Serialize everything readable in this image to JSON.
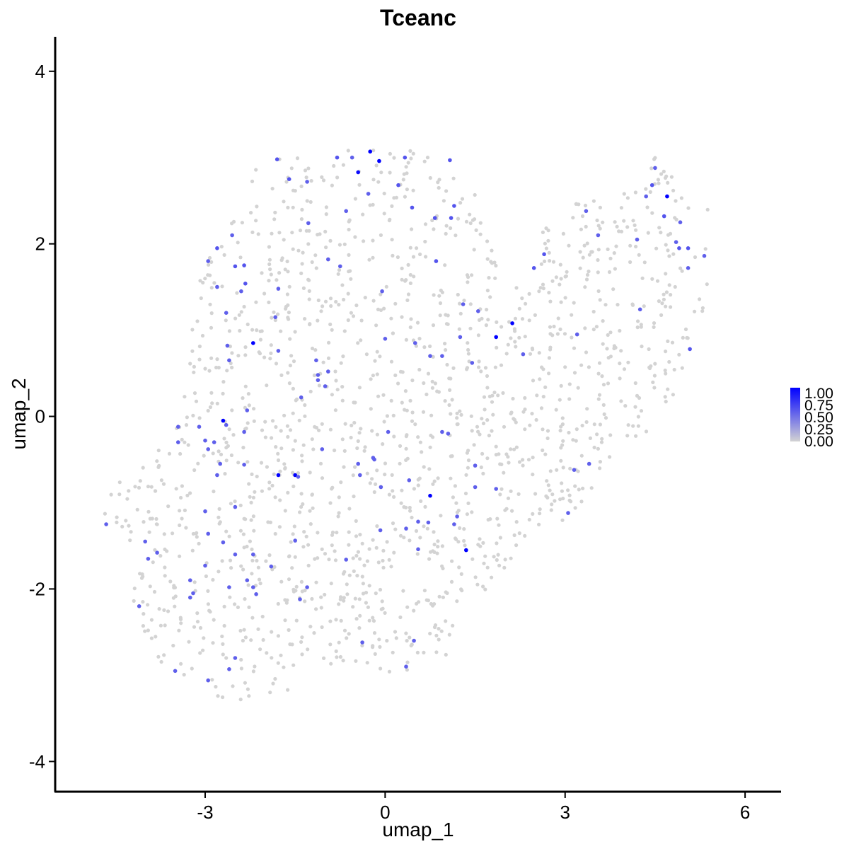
{
  "chart_data": {
    "type": "scatter",
    "title": "Tceanc",
    "xlabel": "umap_1",
    "ylabel": "umap_2",
    "xlim": [
      -5.5,
      6.6
    ],
    "ylim": [
      -4.35,
      4.4
    ],
    "x_ticks": [
      -3,
      0,
      3,
      6
    ],
    "y_ticks": [
      -4,
      -2,
      0,
      2,
      4
    ],
    "x_tick_labels": [
      "-3",
      "0",
      "3",
      "6"
    ],
    "y_tick_labels": [
      "-4",
      "-2",
      "0",
      "2",
      "4"
    ],
    "grid": false,
    "legend": {
      "placement": "right",
      "type": "colorbar",
      "breaks": [
        "1.00",
        "0.75",
        "0.50",
        "0.25",
        "0.00"
      ],
      "low_color": "#d3d3d3",
      "high_color": "#0000ff",
      "range": [
        0,
        1
      ]
    },
    "background_cells": {
      "count": 1550,
      "value": 0,
      "color": "#d3d3d3",
      "note_region": "cells spread over umap_1 -4.8..5.4, umap_2 -3.5..3.1"
    },
    "expressing_points": [
      {
        "x": -0.25,
        "y": 3.07,
        "v": 1.0
      },
      {
        "x": -0.1,
        "y": 2.96,
        "v": 1.0
      },
      {
        "x": -0.45,
        "y": 2.83,
        "v": 0.95
      },
      {
        "x": 4.7,
        "y": 2.55,
        "v": 1.0
      },
      {
        "x": 2.12,
        "y": 1.08,
        "v": 1.0
      },
      {
        "x": 1.85,
        "y": 0.92,
        "v": 1.0
      },
      {
        "x": -2.2,
        "y": 0.85,
        "v": 1.0
      },
      {
        "x": -2.7,
        "y": -0.05,
        "v": 1.0
      },
      {
        "x": -1.78,
        "y": -0.68,
        "v": 1.0
      },
      {
        "x": -1.5,
        "y": -0.68,
        "v": 1.0
      },
      {
        "x": 0.75,
        "y": -0.92,
        "v": 1.0
      },
      {
        "x": 1.35,
        "y": -1.55,
        "v": 1.0
      },
      {
        "x": -1.8,
        "y": 2.98,
        "v": 0.6
      },
      {
        "x": -1.6,
        "y": 2.75,
        "v": 0.6
      },
      {
        "x": -0.8,
        "y": 3.0,
        "v": 0.6
      },
      {
        "x": -0.55,
        "y": 3.0,
        "v": 0.55
      },
      {
        "x": 0.33,
        "y": 3.0,
        "v": 0.6
      },
      {
        "x": 1.08,
        "y": 2.97,
        "v": 0.6
      },
      {
        "x": -1.3,
        "y": 2.72,
        "v": 0.55
      },
      {
        "x": 0.22,
        "y": 2.68,
        "v": 0.6
      },
      {
        "x": -0.28,
        "y": 2.58,
        "v": 0.55
      },
      {
        "x": 0.45,
        "y": 2.42,
        "v": 0.6
      },
      {
        "x": 1.15,
        "y": 2.44,
        "v": 0.6
      },
      {
        "x": -0.65,
        "y": 2.38,
        "v": 0.55
      },
      {
        "x": 0.83,
        "y": 2.3,
        "v": 0.6
      },
      {
        "x": 1.1,
        "y": 2.3,
        "v": 0.6
      },
      {
        "x": -1.28,
        "y": 2.24,
        "v": 0.55
      },
      {
        "x": -2.55,
        "y": 2.1,
        "v": 0.55
      },
      {
        "x": -2.8,
        "y": 1.95,
        "v": 0.6
      },
      {
        "x": -2.95,
        "y": 1.8,
        "v": 0.55
      },
      {
        "x": -2.35,
        "y": 1.75,
        "v": 0.6
      },
      {
        "x": -2.5,
        "y": 1.74,
        "v": 0.6
      },
      {
        "x": -0.95,
        "y": 1.82,
        "v": 0.55
      },
      {
        "x": -0.75,
        "y": 1.74,
        "v": 0.55
      },
      {
        "x": 0.85,
        "y": 1.8,
        "v": 0.6
      },
      {
        "x": -2.8,
        "y": 1.5,
        "v": 0.55
      },
      {
        "x": -2.33,
        "y": 1.54,
        "v": 0.6
      },
      {
        "x": -2.4,
        "y": 1.45,
        "v": 0.55
      },
      {
        "x": -1.78,
        "y": 1.48,
        "v": 0.55
      },
      {
        "x": -0.05,
        "y": 1.45,
        "v": 0.55
      },
      {
        "x": 2.48,
        "y": 1.72,
        "v": 0.6
      },
      {
        "x": 2.65,
        "y": 1.88,
        "v": 0.6
      },
      {
        "x": 3.35,
        "y": 2.38,
        "v": 0.55
      },
      {
        "x": 3.55,
        "y": 2.1,
        "v": 0.55
      },
      {
        "x": 4.2,
        "y": 2.05,
        "v": 0.55
      },
      {
        "x": 4.5,
        "y": 2.88,
        "v": 0.55
      },
      {
        "x": 4.45,
        "y": 2.68,
        "v": 0.6
      },
      {
        "x": 4.65,
        "y": 2.32,
        "v": 0.6
      },
      {
        "x": 4.92,
        "y": 2.25,
        "v": 0.55
      },
      {
        "x": 4.85,
        "y": 2.02,
        "v": 0.55
      },
      {
        "x": 4.9,
        "y": 1.95,
        "v": 0.6
      },
      {
        "x": 5.05,
        "y": 1.95,
        "v": 0.6
      },
      {
        "x": 5.05,
        "y": 1.72,
        "v": 0.55
      },
      {
        "x": 5.32,
        "y": 1.86,
        "v": 0.55
      },
      {
        "x": 4.35,
        "y": 2.55,
        "v": 0.55
      },
      {
        "x": 4.25,
        "y": 1.24,
        "v": 0.55
      },
      {
        "x": 5.08,
        "y": 0.78,
        "v": 0.6
      },
      {
        "x": 3.2,
        "y": 0.95,
        "v": 0.55
      },
      {
        "x": -2.65,
        "y": 1.2,
        "v": 0.55
      },
      {
        "x": -1.83,
        "y": 1.15,
        "v": 0.55
      },
      {
        "x": 1.3,
        "y": 1.3,
        "v": 0.55
      },
      {
        "x": 1.55,
        "y": 1.22,
        "v": 0.55
      },
      {
        "x": 1.25,
        "y": 0.92,
        "v": 0.55
      },
      {
        "x": 0.0,
        "y": 0.9,
        "v": 0.55
      },
      {
        "x": 0.5,
        "y": 0.85,
        "v": 0.55
      },
      {
        "x": 0.75,
        "y": 0.7,
        "v": 0.55
      },
      {
        "x": 0.95,
        "y": 0.7,
        "v": 0.55
      },
      {
        "x": 1.45,
        "y": 0.62,
        "v": 0.55
      },
      {
        "x": 2.3,
        "y": 0.72,
        "v": 0.55
      },
      {
        "x": -2.63,
        "y": 0.82,
        "v": 0.55
      },
      {
        "x": -1.78,
        "y": 0.76,
        "v": 0.55
      },
      {
        "x": -2.6,
        "y": 0.65,
        "v": 0.55
      },
      {
        "x": -1.15,
        "y": 0.65,
        "v": 0.55
      },
      {
        "x": -0.95,
        "y": 0.52,
        "v": 0.55
      },
      {
        "x": -1.12,
        "y": 0.48,
        "v": 0.55
      },
      {
        "x": -1.12,
        "y": 0.42,
        "v": 0.55
      },
      {
        "x": -1.0,
        "y": 0.35,
        "v": 0.55
      },
      {
        "x": -1.4,
        "y": 0.22,
        "v": 0.55
      },
      {
        "x": -2.3,
        "y": 0.07,
        "v": 0.55
      },
      {
        "x": -3.45,
        "y": -0.12,
        "v": 0.55
      },
      {
        "x": -3.1,
        "y": -0.12,
        "v": 0.55
      },
      {
        "x": -2.65,
        "y": -0.1,
        "v": 0.55
      },
      {
        "x": -2.35,
        "y": -0.18,
        "v": 0.55
      },
      {
        "x": -3.0,
        "y": -0.28,
        "v": 0.55
      },
      {
        "x": -2.85,
        "y": -0.3,
        "v": 0.55
      },
      {
        "x": -3.45,
        "y": -0.3,
        "v": 0.55
      },
      {
        "x": -2.95,
        "y": -0.38,
        "v": 0.55
      },
      {
        "x": -1.05,
        "y": -0.38,
        "v": 0.55
      },
      {
        "x": 0.05,
        "y": -0.18,
        "v": 0.55
      },
      {
        "x": 0.95,
        "y": -0.18,
        "v": 0.55
      },
      {
        "x": 1.05,
        "y": -0.2,
        "v": 0.55
      },
      {
        "x": -0.2,
        "y": -0.48,
        "v": 0.55
      },
      {
        "x": -0.18,
        "y": -0.5,
        "v": 0.55
      },
      {
        "x": -2.75,
        "y": -0.55,
        "v": 0.55
      },
      {
        "x": -2.35,
        "y": -0.56,
        "v": 0.55
      },
      {
        "x": -0.45,
        "y": -0.55,
        "v": 0.55
      },
      {
        "x": 1.5,
        "y": -0.57,
        "v": 0.55
      },
      {
        "x": 3.4,
        "y": -0.55,
        "v": 0.55
      },
      {
        "x": 3.15,
        "y": -0.62,
        "v": 0.55
      },
      {
        "x": -2.8,
        "y": -0.68,
        "v": 0.55
      },
      {
        "x": -1.45,
        "y": -0.7,
        "v": 0.55
      },
      {
        "x": -0.42,
        "y": -0.68,
        "v": 0.55
      },
      {
        "x": 0.4,
        "y": -0.74,
        "v": 0.55
      },
      {
        "x": -0.07,
        "y": -0.82,
        "v": 0.55
      },
      {
        "x": 1.5,
        "y": -0.82,
        "v": 0.55
      },
      {
        "x": 1.85,
        "y": -0.84,
        "v": 0.55
      },
      {
        "x": -2.5,
        "y": -1.05,
        "v": 0.55
      },
      {
        "x": -3.0,
        "y": -1.1,
        "v": 0.55
      },
      {
        "x": 1.2,
        "y": -1.16,
        "v": 0.55
      },
      {
        "x": 3.05,
        "y": -1.12,
        "v": 0.55
      },
      {
        "x": 0.55,
        "y": -1.22,
        "v": 0.55
      },
      {
        "x": 0.72,
        "y": -1.23,
        "v": 0.55
      },
      {
        "x": 0.35,
        "y": -1.3,
        "v": 0.55
      },
      {
        "x": 1.15,
        "y": -1.25,
        "v": 0.55
      },
      {
        "x": -0.08,
        "y": -1.32,
        "v": 0.55
      },
      {
        "x": -2.95,
        "y": -1.36,
        "v": 0.55
      },
      {
        "x": -4.65,
        "y": -1.25,
        "v": 0.55
      },
      {
        "x": -4.0,
        "y": -1.45,
        "v": 0.55
      },
      {
        "x": -2.7,
        "y": -1.46,
        "v": 0.55
      },
      {
        "x": -1.5,
        "y": -1.44,
        "v": 0.55
      },
      {
        "x": -3.8,
        "y": -1.58,
        "v": 0.55
      },
      {
        "x": -2.5,
        "y": -1.6,
        "v": 0.55
      },
      {
        "x": -2.2,
        "y": -1.6,
        "v": 0.55
      },
      {
        "x": 0.55,
        "y": -1.54,
        "v": 0.55
      },
      {
        "x": -3.95,
        "y": -1.65,
        "v": 0.55
      },
      {
        "x": -0.65,
        "y": -1.66,
        "v": 0.55
      },
      {
        "x": -3.0,
        "y": -1.73,
        "v": 0.55
      },
      {
        "x": -1.9,
        "y": -1.74,
        "v": 0.55
      },
      {
        "x": -3.25,
        "y": -1.9,
        "v": 0.55
      },
      {
        "x": -2.3,
        "y": -1.9,
        "v": 0.55
      },
      {
        "x": -2.2,
        "y": -1.98,
        "v": 0.55
      },
      {
        "x": -2.6,
        "y": -1.98,
        "v": 0.55
      },
      {
        "x": -1.3,
        "y": -1.98,
        "v": 0.55
      },
      {
        "x": -3.2,
        "y": -2.05,
        "v": 0.55
      },
      {
        "x": -2.15,
        "y": -2.06,
        "v": 0.55
      },
      {
        "x": -3.25,
        "y": -2.1,
        "v": 0.55
      },
      {
        "x": -1.42,
        "y": -2.12,
        "v": 0.55
      },
      {
        "x": -4.1,
        "y": -2.2,
        "v": 0.55
      },
      {
        "x": 0.48,
        "y": -2.6,
        "v": 0.55
      },
      {
        "x": -0.38,
        "y": -2.62,
        "v": 0.55
      },
      {
        "x": -2.5,
        "y": -2.8,
        "v": 0.55
      },
      {
        "x": -3.5,
        "y": -2.95,
        "v": 0.55
      },
      {
        "x": -2.6,
        "y": -2.93,
        "v": 0.55
      },
      {
        "x": 0.35,
        "y": -2.9,
        "v": 0.55
      },
      {
        "x": -2.95,
        "y": -3.06,
        "v": 0.55
      }
    ]
  }
}
